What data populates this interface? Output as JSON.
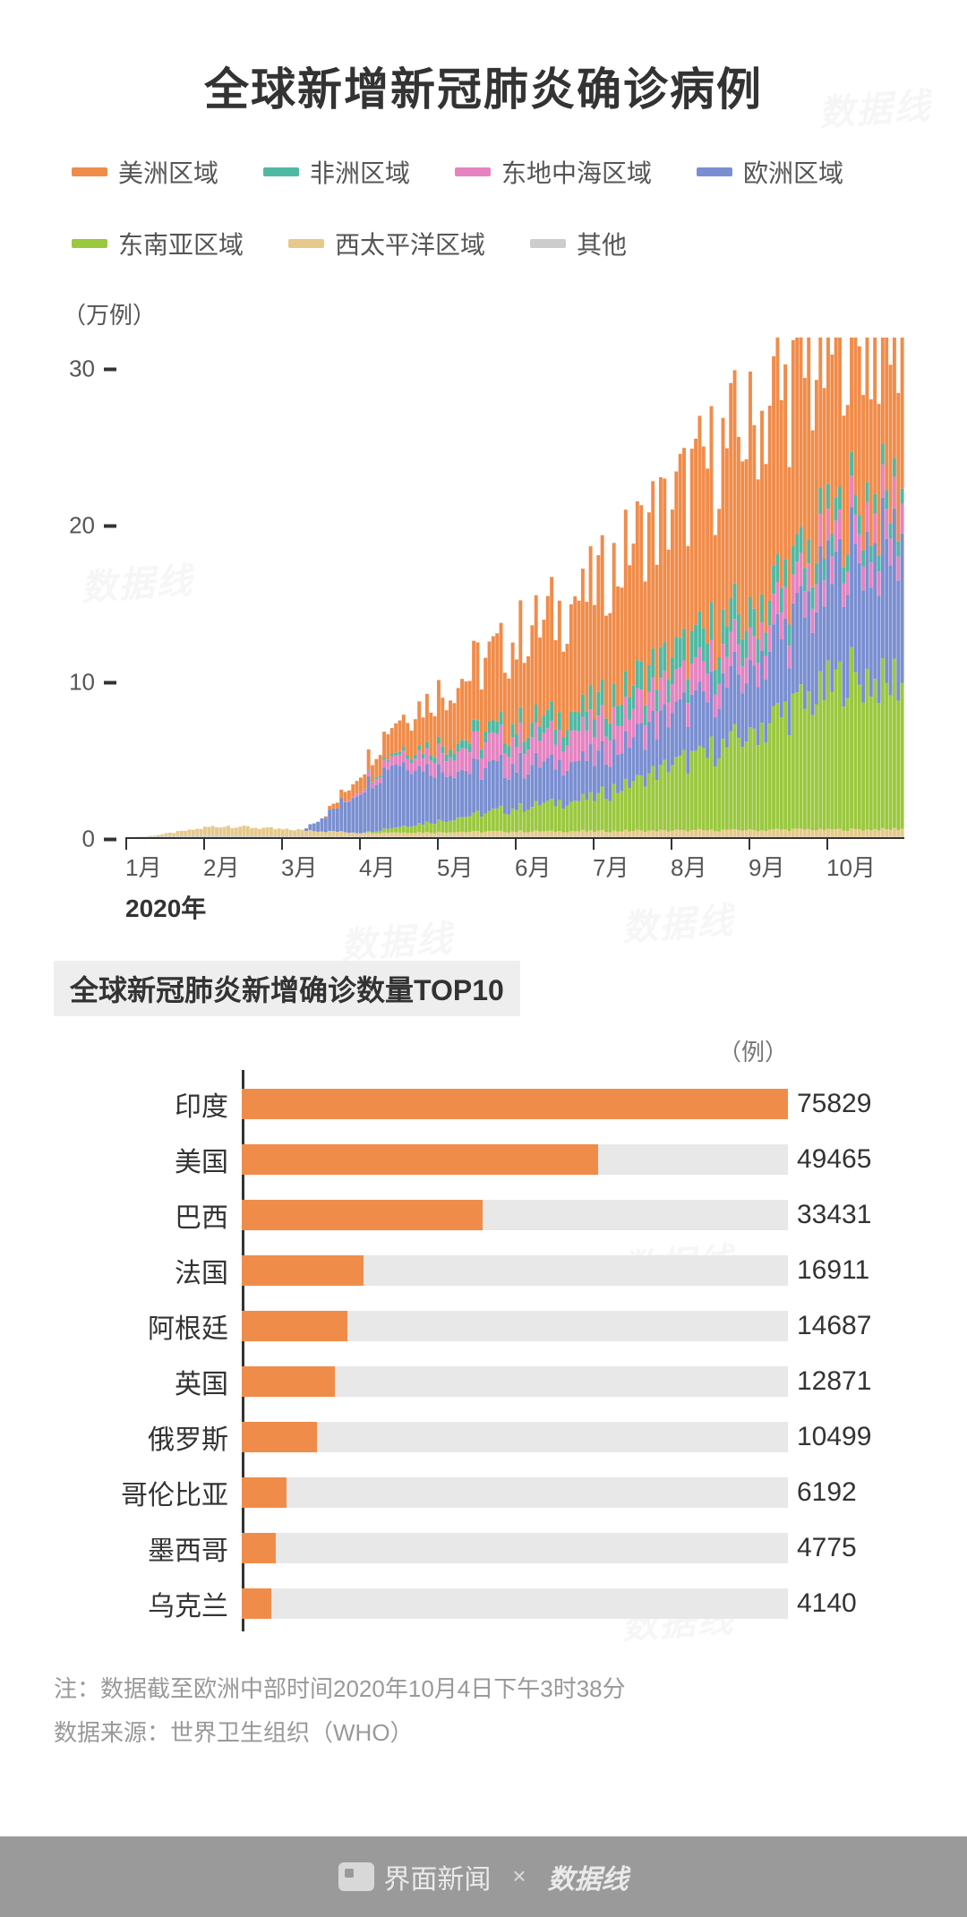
{
  "title": "全球新增新冠肺炎确诊病例",
  "legend": [
    {
      "label": "美洲区域",
      "color": "#f08c4a"
    },
    {
      "label": "非洲区域",
      "color": "#4fb9a3"
    },
    {
      "label": "东地中海区域",
      "color": "#e583c1"
    },
    {
      "label": "欧洲区域",
      "color": "#7a8fd1"
    },
    {
      "label": "东南亚区域",
      "color": "#9ac83e"
    },
    {
      "label": "西太平洋区域",
      "color": "#e6c98b"
    },
    {
      "label": "其他",
      "color": "#cccccc"
    }
  ],
  "stacked_chart": {
    "type": "stacked-bar",
    "y_unit": "（万例）",
    "y_ticks": [
      0,
      10,
      20,
      30
    ],
    "y_max": 32,
    "x_labels": [
      "1月",
      "2月",
      "3月",
      "4月",
      "5月",
      "6月",
      "7月",
      "8月",
      "9月",
      "10月"
    ],
    "x_year": "2020年",
    "background_color": "#ffffff",
    "axis_color": "#333333",
    "series_order": [
      "其他",
      "西太平洋区域",
      "东南亚区域",
      "欧洲区域",
      "东地中海区域",
      "非洲区域",
      "美洲区域"
    ],
    "series_colors": {
      "美洲区域": "#f08c4a",
      "非洲区域": "#4fb9a3",
      "东地中海区域": "#e583c1",
      "欧洲区域": "#7a8fd1",
      "东南亚区域": "#9ac83e",
      "西太平洋区域": "#e6c98b",
      "其他": "#cccccc"
    },
    "n_bars": 200,
    "noise_amp": 0.18,
    "shape": {
      "其他": {
        "start": 0,
        "peaks": [
          [
            20,
            0.15
          ],
          [
            40,
            0.05
          ],
          [
            200,
            0.02
          ]
        ]
      },
      "西太平洋区域": {
        "start": 5,
        "peaks": [
          [
            25,
            0.6
          ],
          [
            60,
            0.25
          ],
          [
            200,
            0.5
          ]
        ]
      },
      "东南亚区域": {
        "start": 60,
        "peaks": [
          [
            120,
            2.2
          ],
          [
            160,
            6.0
          ],
          [
            185,
            9.8
          ],
          [
            200,
            9.2
          ]
        ]
      },
      "欧洲区域": {
        "start": 45,
        "peaks": [
          [
            68,
            4.2
          ],
          [
            90,
            2.8
          ],
          [
            120,
            2.5
          ],
          [
            160,
            4.0
          ],
          [
            185,
            7.5
          ],
          [
            200,
            9.5
          ]
        ]
      },
      "东地中海区域": {
        "start": 55,
        "peaks": [
          [
            90,
            1.6
          ],
          [
            120,
            2.0
          ],
          [
            160,
            1.8
          ],
          [
            200,
            1.8
          ]
        ]
      },
      "非洲区域": {
        "start": 60,
        "peaks": [
          [
            120,
            1.3
          ],
          [
            150,
            2.0
          ],
          [
            200,
            1.0
          ]
        ]
      },
      "美洲区域": {
        "start": 50,
        "peaks": [
          [
            70,
            2.0
          ],
          [
            100,
            5.5
          ],
          [
            140,
            10.0
          ],
          [
            165,
            12.5
          ],
          [
            195,
            11.0
          ]
        ]
      }
    }
  },
  "top10": {
    "title": "全球新冠肺炎新增确诊数量TOP10",
    "unit": "（例）",
    "bar_color": "#f08c4a",
    "track_color": "#e8e8e8",
    "axis_color": "#333333",
    "max_value": 75829,
    "rows": [
      {
        "label": "印度",
        "value": 75829
      },
      {
        "label": "美国",
        "value": 49465
      },
      {
        "label": "巴西",
        "value": 33431
      },
      {
        "label": "法国",
        "value": 16911
      },
      {
        "label": "阿根廷",
        "value": 14687
      },
      {
        "label": "英国",
        "value": 12871
      },
      {
        "label": "俄罗斯",
        "value": 10499
      },
      {
        "label": "哥伦比亚",
        "value": 6192
      },
      {
        "label": "墨西哥",
        "value": 4775
      },
      {
        "label": "乌克兰",
        "value": 4140
      }
    ]
  },
  "notes": {
    "note1_prefix": "注：",
    "note1": "数据截至欧洲中部时间2020年10月4日下午3时38分",
    "note2_prefix": "数据来源：",
    "note2": "世界卫生组织（WHO）"
  },
  "footer": {
    "brand1": "界面新闻",
    "separator": "×",
    "brand2": "数据线"
  },
  "watermark_text": "数据线"
}
